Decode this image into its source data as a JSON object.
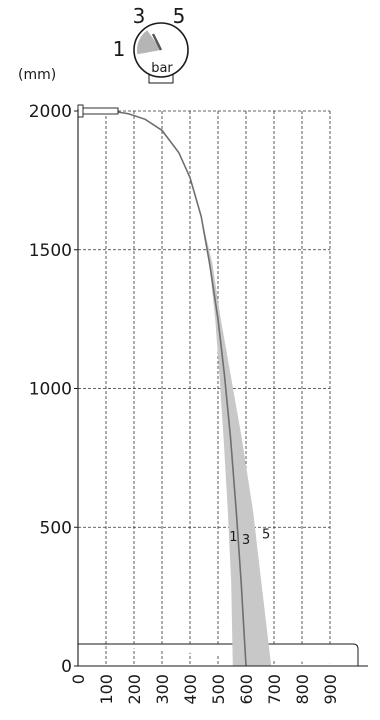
{
  "chart_data": {
    "type": "area",
    "unit_label": "(mm)",
    "gauge": {
      "labels": [
        "1",
        "3",
        "5"
      ],
      "unit": "bar"
    },
    "x_ticks": [
      0,
      100,
      200,
      300,
      400,
      500,
      600,
      700,
      800,
      900
    ],
    "y_ticks": [
      0,
      500,
      1000,
      1500,
      2000
    ],
    "xlim": [
      0,
      1000
    ],
    "ylim": [
      0,
      2000
    ],
    "grid": true,
    "series": [
      {
        "label": "1",
        "points": [
          [
            0,
            2000
          ],
          [
            60,
            2000
          ],
          [
            120,
            2000
          ],
          [
            180,
            1990
          ],
          [
            240,
            1970
          ],
          [
            300,
            1930
          ],
          [
            360,
            1850
          ],
          [
            400,
            1760
          ],
          [
            440,
            1620
          ],
          [
            470,
            1440
          ],
          [
            490,
            1250
          ],
          [
            505,
            1050
          ],
          [
            520,
            820
          ],
          [
            535,
            560
          ],
          [
            547,
            300
          ],
          [
            553,
            0
          ]
        ]
      },
      {
        "label": "3",
        "points": [
          [
            0,
            2000
          ],
          [
            60,
            2000
          ],
          [
            120,
            2000
          ],
          [
            180,
            1990
          ],
          [
            240,
            1970
          ],
          [
            300,
            1930
          ],
          [
            360,
            1850
          ],
          [
            400,
            1760
          ],
          [
            440,
            1620
          ],
          [
            470,
            1450
          ],
          [
            500,
            1250
          ],
          [
            523,
            1050
          ],
          [
            545,
            820
          ],
          [
            565,
            560
          ],
          [
            583,
            300
          ],
          [
            600,
            0
          ]
        ]
      },
      {
        "label": "5",
        "points": [
          [
            0,
            2000
          ],
          [
            60,
            2000
          ],
          [
            120,
            2000
          ],
          [
            180,
            1990
          ],
          [
            240,
            1970
          ],
          [
            300,
            1930
          ],
          [
            360,
            1850
          ],
          [
            400,
            1760
          ],
          [
            440,
            1620
          ],
          [
            480,
            1450
          ],
          [
            510,
            1250
          ],
          [
            545,
            1050
          ],
          [
            585,
            820
          ],
          [
            625,
            560
          ],
          [
            655,
            300
          ],
          [
            690,
            0
          ]
        ]
      }
    ],
    "curve_labels": [
      {
        "text": "1",
        "x": 555,
        "y": 450
      },
      {
        "text": "3",
        "x": 600,
        "y": 440
      },
      {
        "text": "5",
        "x": 672,
        "y": 460
      }
    ],
    "colors": {
      "band": "#c8c8c8",
      "curve": "#6e6e6e",
      "grid": "#333333",
      "axis": "#1a1a1a",
      "gauge_fill": "#b5b5b5"
    }
  }
}
